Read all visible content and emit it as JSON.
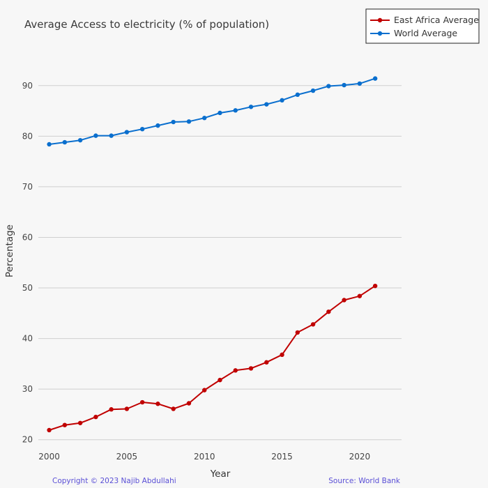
{
  "chart_data": {
    "type": "line",
    "title": "Average Access to electricity (% of population)",
    "xlabel": "Year",
    "ylabel": "Percentage",
    "xlim": [
      1999.3,
      2022.7
    ],
    "ylim": [
      19,
      97
    ],
    "x_ticks": [
      2000,
      2005,
      2010,
      2015,
      2020
    ],
    "y_ticks": [
      20,
      30,
      40,
      50,
      60,
      70,
      80,
      90
    ],
    "grid": "horizontal",
    "legend_position": "top-right",
    "x": [
      2000,
      2001,
      2002,
      2003,
      2004,
      2005,
      2006,
      2007,
      2008,
      2009,
      2010,
      2011,
      2012,
      2013,
      2014,
      2015,
      2016,
      2017,
      2018,
      2019,
      2020,
      2021
    ],
    "series": [
      {
        "name": "East Africa Average",
        "color": "#c00000",
        "values": [
          21.9,
          22.9,
          23.3,
          24.5,
          26.0,
          26.1,
          27.4,
          27.1,
          26.1,
          27.2,
          29.8,
          31.8,
          33.7,
          34.1,
          35.3,
          36.8,
          41.2,
          42.8,
          45.3,
          47.6,
          48.4,
          50.4
        ]
      },
      {
        "name": "World Average",
        "color": "#0a6fce",
        "values": [
          78.4,
          78.8,
          79.2,
          80.1,
          80.1,
          80.8,
          81.4,
          82.1,
          82.8,
          82.9,
          83.6,
          84.6,
          85.1,
          85.8,
          86.3,
          87.1,
          88.2,
          89.0,
          89.9,
          90.1,
          90.4,
          91.4
        ]
      }
    ]
  },
  "footer": {
    "copyright": "Copyright © 2023 Najib Abdullahi",
    "source": "Source: World Bank"
  }
}
